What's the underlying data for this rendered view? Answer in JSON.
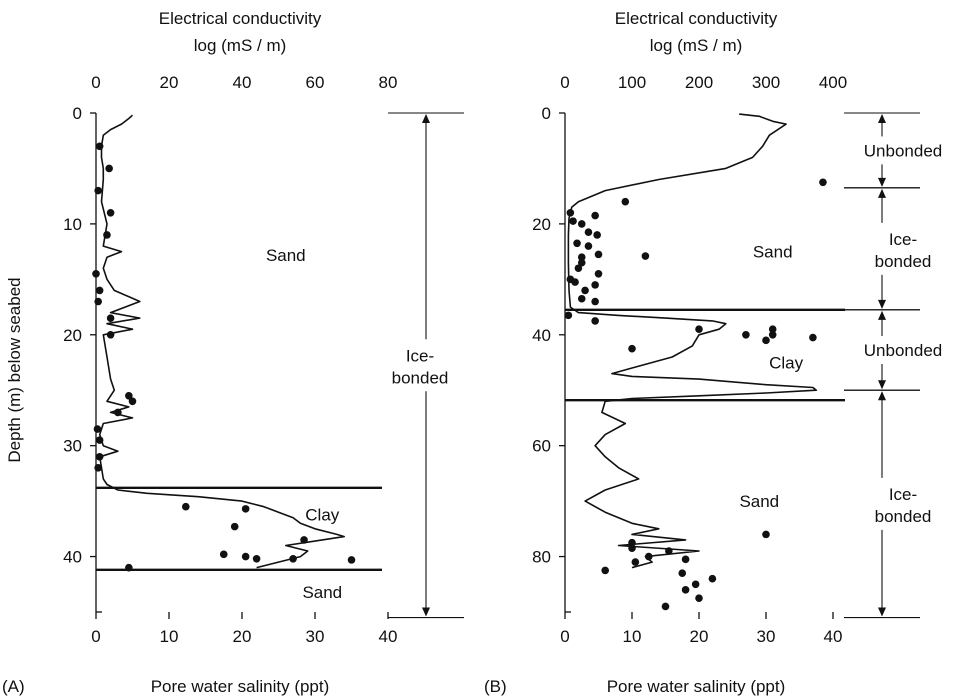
{
  "chart_data": [
    {
      "type": "scatter",
      "panel_label": "(A)",
      "top_axis": {
        "title_line1": "Electrical conductivity",
        "title_line2": "log (mS / m)",
        "range": [
          0,
          80
        ],
        "ticks": [
          0,
          20,
          40,
          60,
          80
        ]
      },
      "bottom_axis": {
        "title": "Pore water salinity (ppt)",
        "range": [
          0,
          40
        ],
        "ticks": [
          0,
          10,
          20,
          30,
          40
        ]
      },
      "y_axis": {
        "title": "Depth (m) below seabed",
        "range": [
          0,
          45
        ],
        "inverted": true,
        "ticks": [
          0,
          10,
          20,
          30,
          40
        ]
      },
      "boundaries_depth": [
        33.8,
        41.2
      ],
      "layer_labels": [
        {
          "text": "Sand",
          "x_ppt": 26,
          "depth": 12.8
        },
        {
          "text": "Clay",
          "x_ppt": 31,
          "depth": 36.2
        },
        {
          "text": "Sand",
          "x_ppt": 31,
          "depth": 43.2
        }
      ],
      "zones": [
        {
          "line1": "Ice-",
          "line2": "bonded",
          "from": 0,
          "to": 45.5
        }
      ],
      "conductivity_profile": {
        "depth": [
          0.2,
          0.5,
          1.0,
          1.5,
          2.0,
          3,
          4,
          5,
          6,
          8,
          10,
          12,
          12.5,
          13,
          14,
          15,
          16,
          17,
          18,
          18.5,
          19,
          19.5,
          20,
          22,
          24,
          25,
          26,
          26.5,
          27,
          27.5,
          28,
          29,
          30,
          30.5,
          31,
          32,
          33,
          33.5,
          34,
          34.3,
          34.6,
          35,
          35.5,
          36,
          36.5,
          37,
          37.5,
          38,
          38.2,
          38.5,
          39,
          39.5,
          40,
          40.5,
          41
        ],
        "ec": [
          10,
          9,
          7,
          4,
          2,
          1.5,
          1.5,
          2,
          2,
          1.5,
          3,
          2,
          7,
          3,
          2,
          3,
          5,
          12,
          4,
          12,
          3,
          10,
          2,
          3,
          4,
          5,
          3,
          9,
          4,
          10,
          2,
          1,
          2,
          6,
          1,
          1.5,
          2,
          3,
          6,
          14,
          28,
          40,
          46,
          50,
          54,
          56,
          60,
          66,
          68,
          62,
          52,
          58,
          56,
          50,
          44
        ]
      },
      "salinity_points": {
        "depth": [
          3,
          5,
          7,
          9,
          11,
          14.5,
          16,
          17,
          18.5,
          20,
          25.5,
          26,
          27,
          28.5,
          29.5,
          31,
          32,
          35.5,
          35.7,
          37.3,
          38.5,
          39.8,
          40,
          40.2,
          40.2,
          40.3,
          41
        ],
        "ppt": [
          0.5,
          1.8,
          0.3,
          2,
          1.5,
          0,
          0.5,
          0.3,
          2,
          2,
          4.5,
          5,
          3,
          0.2,
          0.5,
          0.5,
          0.3,
          12.3,
          20.5,
          19,
          28.5,
          17.5,
          20.5,
          22,
          27,
          35,
          4.5
        ]
      }
    },
    {
      "type": "scatter",
      "panel_label": "(B)",
      "top_axis": {
        "title_line1": "Electrical conductivity",
        "title_line2": "log (mS / m)",
        "range": [
          0,
          400
        ],
        "ticks": [
          0,
          100,
          200,
          300,
          400
        ]
      },
      "bottom_axis": {
        "title": "Pore water salinity (ppt)",
        "range": [
          0,
          40
        ],
        "ticks": [
          0,
          10,
          20,
          30,
          40
        ]
      },
      "y_axis": {
        "title": "",
        "range": [
          0,
          90
        ],
        "inverted": true,
        "ticks": [
          0,
          20,
          40,
          60,
          80
        ]
      },
      "boundaries_depth": [
        35.5,
        51.8
      ],
      "layer_labels": [
        {
          "text": "Sand",
          "x_ppt": 31,
          "depth": 25
        },
        {
          "text": "Clay",
          "x_ppt": 33,
          "depth": 45
        },
        {
          "text": "Sand",
          "x_ppt": 29,
          "depth": 70
        }
      ],
      "zones": [
        {
          "line1": "Unbonded",
          "line2": "",
          "from": 0,
          "to": 13.5
        },
        {
          "line1": "Ice-",
          "line2": "bonded",
          "from": 13.5,
          "to": 35.5
        },
        {
          "line1": "Unbonded",
          "line2": "",
          "from": 35.5,
          "to": 50
        },
        {
          "line1": "Ice-",
          "line2": "bonded",
          "from": 50,
          "to": 91
        }
      ],
      "conductivity_profile": {
        "depth": [
          0.2,
          0.6,
          1.5,
          2,
          4,
          6,
          8,
          10,
          12,
          14,
          16,
          17,
          18,
          19,
          22,
          27,
          32,
          35,
          36,
          36.5,
          37,
          37.5,
          38,
          39,
          40,
          42,
          44,
          46,
          47,
          47.5,
          48,
          49,
          49.5,
          50,
          50.5,
          51,
          51.5,
          52,
          54,
          56,
          58,
          60,
          62,
          64,
          66,
          68,
          70,
          72,
          74,
          75,
          76,
          77,
          78,
          79,
          80,
          81,
          82
        ],
        "ec": [
          260,
          290,
          310,
          330,
          305,
          295,
          280,
          240,
          140,
          60,
          20,
          10,
          8,
          6,
          5,
          5,
          6,
          8,
          20,
          80,
          150,
          220,
          240,
          230,
          200,
          190,
          160,
          100,
          70,
          100,
          200,
          300,
          370,
          375,
          300,
          200,
          100,
          60,
          55,
          90,
          60,
          45,
          60,
          80,
          110,
          60,
          30,
          60,
          100,
          140,
          100,
          180,
          80,
          200,
          120,
          130,
          100
        ]
      },
      "salinity_points": {
        "depth": [
          12.5,
          16,
          18,
          18.5,
          19.5,
          20,
          21.5,
          22,
          23.5,
          24,
          25.5,
          25.8,
          26,
          27,
          28,
          29,
          30,
          30.5,
          31,
          32,
          33.5,
          34,
          36.5,
          37.5,
          39,
          39,
          40,
          40,
          40.5,
          41,
          42.5,
          76,
          77.5,
          78.5,
          79,
          80,
          80.5,
          81,
          82.5,
          83,
          84,
          85,
          86,
          87.5,
          89
        ],
        "ppt": [
          38.5,
          9,
          0.8,
          4.5,
          1.2,
          2.5,
          3.5,
          4.8,
          1.8,
          3.5,
          5,
          12,
          2.5,
          2.5,
          2,
          5,
          0.8,
          1.5,
          4.5,
          3,
          2.5,
          4.5,
          0.5,
          4.5,
          20,
          31,
          27,
          31,
          37,
          30,
          10,
          30,
          10,
          10,
          15.5,
          12.5,
          18,
          10.5,
          6,
          17.5,
          22,
          19.5,
          18,
          20,
          15
        ]
      }
    }
  ]
}
